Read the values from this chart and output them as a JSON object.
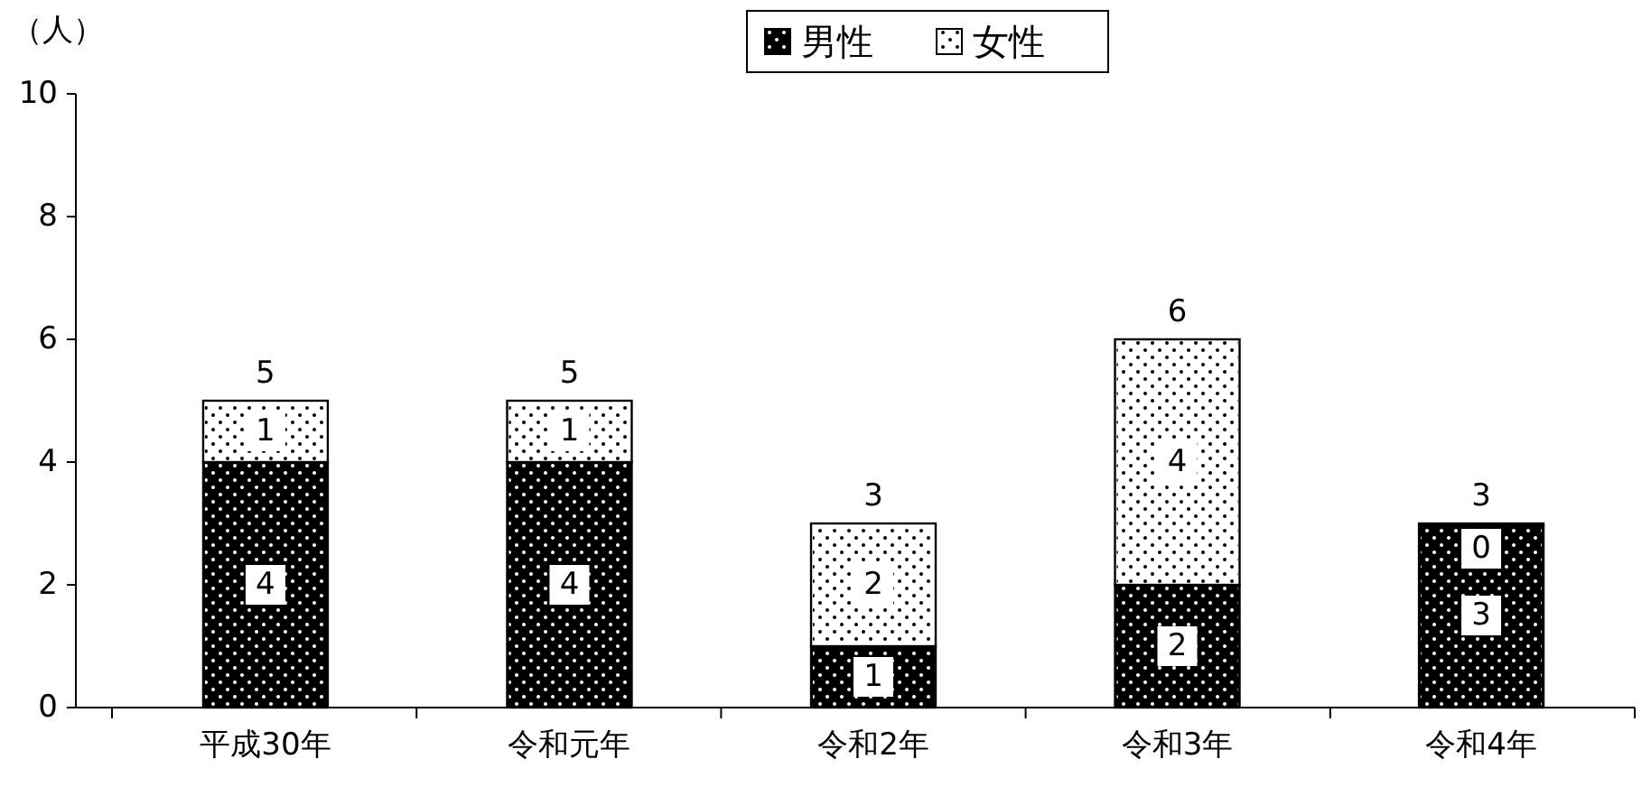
{
  "chart_data": {
    "type": "bar",
    "stacked": true,
    "ylabel": "（人）",
    "categories": [
      "平成30年",
      "令和元年",
      "令和2年",
      "令和3年",
      "令和4年"
    ],
    "series": [
      {
        "name": "男性",
        "color": "#000000",
        "values": [
          4,
          4,
          1,
          2,
          3
        ]
      },
      {
        "name": "女性",
        "color": "#ffffff",
        "values": [
          1,
          1,
          2,
          4,
          0
        ]
      }
    ],
    "ylim": [
      0,
      10
    ],
    "yticks": [
      0,
      2,
      4,
      6,
      8,
      10
    ],
    "data_labels": true,
    "totals": [
      "5",
      "5",
      "3",
      "6",
      "3"
    ],
    "legend": "top",
    "grid": false
  }
}
